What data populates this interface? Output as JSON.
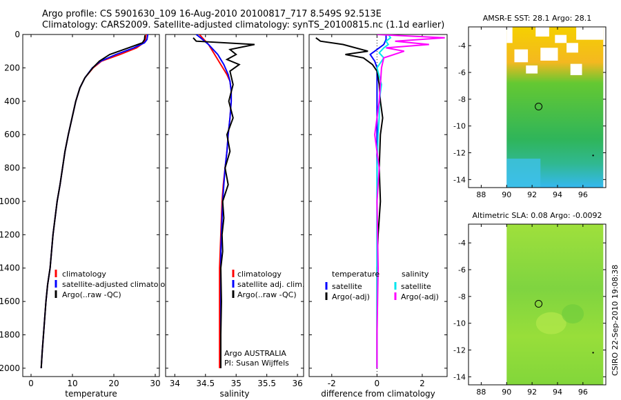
{
  "title_line1": "Argo profile: CS 5901630_109 16-Aug-2010 20100817_717 8.549S 92.513E",
  "title_line2": "Climatology: CARS2009. Satellite-adjusted climatology: synTS_20100815.nc (1.1d earlier)",
  "side_label": "CSIRO 22-Sep-2010 19:08:38",
  "colors": {
    "climatology": "#ff0000",
    "satellite": "#0000ff",
    "argo": "#000000",
    "sal_satellite": "#00e5ee",
    "sal_argo": "#ff00ff"
  },
  "chart_data": [
    {
      "type": "line",
      "xlabel": "temperature",
      "ylabel": "",
      "xlim": [
        -2,
        31
      ],
      "ylim": [
        2050,
        0
      ],
      "xticks": [
        0,
        10,
        20,
        30
      ],
      "yticks": [
        0,
        200,
        400,
        600,
        800,
        1000,
        1200,
        1400,
        1600,
        1800,
        2000
      ],
      "legend": [
        "climatology",
        "satellite-adjusted climatology",
        "Argo(..raw -QC)"
      ],
      "series": [
        {
          "name": "climatology",
          "color": "#ff0000",
          "x": [
            27.8,
            27.6,
            27.2,
            25.5,
            21.5,
            17.0,
            15.0,
            13.0,
            11.8,
            10.8,
            9.9,
            9.0,
            8.2,
            7.6,
            7.0,
            6.3,
            5.3,
            4.6,
            4.0,
            3.6,
            3.3,
            3.0,
            2.7,
            2.45
          ],
          "y": [
            0,
            30,
            50,
            80,
            120,
            160,
            200,
            260,
            320,
            400,
            500,
            600,
            700,
            800,
            900,
            1000,
            1200,
            1400,
            1500,
            1600,
            1700,
            1800,
            1900,
            2000
          ]
        },
        {
          "name": "satellite-adjusted climatology",
          "color": "#0000ff",
          "x": [
            28.2,
            28.0,
            27.4,
            24.8,
            20.5,
            16.8,
            14.8,
            13.0,
            11.8,
            10.8,
            9.9,
            9.0,
            8.2,
            7.6,
            7.0,
            6.3,
            5.3,
            4.6,
            4.0,
            3.6,
            3.3,
            3.0,
            2.7,
            2.45
          ],
          "y": [
            0,
            30,
            50,
            80,
            120,
            160,
            200,
            260,
            320,
            400,
            500,
            600,
            700,
            800,
            900,
            1000,
            1200,
            1400,
            1500,
            1600,
            1700,
            1800,
            1900,
            2000
          ]
        },
        {
          "name": "Argo(..raw -QC)",
          "color": "#000000",
          "x": [
            27.5,
            27.4,
            26.9,
            23.5,
            19.0,
            16.5,
            14.9,
            13.0,
            11.8,
            10.8,
            9.9,
            9.0,
            8.2,
            7.6,
            7.0,
            6.3,
            5.3,
            4.6,
            4.0,
            3.6,
            3.3,
            3.0,
            2.7,
            2.45
          ],
          "y": [
            5,
            30,
            50,
            80,
            120,
            160,
            200,
            260,
            320,
            400,
            500,
            600,
            700,
            800,
            900,
            1000,
            1200,
            1400,
            1500,
            1600,
            1700,
            1800,
            1900,
            2000
          ]
        }
      ]
    },
    {
      "type": "line",
      "xlabel": "salinity",
      "xlim": [
        33.85,
        36.1
      ],
      "ylim": [
        2050,
        0
      ],
      "xticks": [
        34,
        34.5,
        35,
        35.5,
        36
      ],
      "legend": [
        "climatology",
        "satellite adj. clim.",
        "Argo(..raw -QC)"
      ],
      "annotation": [
        "Argo AUSTRALIA",
        "PI: Susan Wijffels"
      ],
      "series": [
        {
          "name": "climatology",
          "color": "#ff0000",
          "x": [
            34.4,
            34.45,
            34.55,
            34.65,
            34.75,
            34.85,
            34.9,
            34.92,
            34.92,
            34.9,
            34.87,
            34.85,
            34.82,
            34.79,
            34.77,
            34.76,
            34.75,
            34.74,
            34.73,
            34.73,
            34.73,
            34.73,
            34.73,
            34.73,
            34.73
          ],
          "y": [
            0,
            20,
            60,
            120,
            180,
            240,
            280,
            340,
            400,
            500,
            600,
            700,
            800,
            900,
            1000,
            1100,
            1200,
            1300,
            1400,
            1500,
            1600,
            1700,
            1800,
            1900,
            2000
          ]
        },
        {
          "name": "satellite adj. clim.",
          "color": "#0000ff",
          "x": [
            34.35,
            34.42,
            34.55,
            34.7,
            34.8,
            34.87,
            34.9,
            34.92,
            34.92,
            34.9,
            34.87,
            34.85,
            34.82,
            34.8,
            34.78,
            34.77,
            34.76,
            34.75,
            34.75,
            34.75,
            34.75,
            34.75,
            34.75,
            34.75,
            34.75
          ],
          "y": [
            0,
            20,
            60,
            120,
            180,
            240,
            280,
            340,
            400,
            500,
            600,
            700,
            800,
            900,
            1000,
            1100,
            1200,
            1300,
            1400,
            1500,
            1600,
            1700,
            1800,
            1900,
            2000
          ]
        },
        {
          "name": "Argo(..raw -QC)",
          "color": "#000000",
          "x": [
            34.3,
            34.35,
            35.3,
            34.9,
            35.0,
            34.85,
            35.05,
            34.9,
            34.95,
            34.88,
            34.95,
            34.85,
            34.9,
            34.82,
            34.87,
            34.78,
            34.8,
            34.77,
            34.78,
            34.75,
            34.76,
            34.75,
            34.75
          ],
          "y": [
            20,
            40,
            60,
            90,
            120,
            150,
            180,
            220,
            300,
            400,
            500,
            600,
            700,
            800,
            900,
            1000,
            1100,
            1200,
            1300,
            1400,
            1600,
            1800,
            2000
          ]
        }
      ]
    },
    {
      "type": "line",
      "xlabel": "difference from climatology",
      "xlim": [
        -3.0,
        3.1
      ],
      "ylim": [
        2050,
        0
      ],
      "xticks": [
        -2,
        0,
        2
      ],
      "legend_header": [
        "temperature",
        "salinity"
      ],
      "legend": [
        "satellite",
        "Argo(-adj)",
        "satellite",
        "Argo(-adj)"
      ],
      "series": [
        {
          "name": "temperature satellite",
          "color": "#0000ff",
          "x": [
            0.4,
            0.4,
            0.3,
            0.1,
            -0.3,
            -0.1,
            0.0,
            0.0,
            0.0,
            0.0,
            0.0,
            0.0,
            0.0
          ],
          "y": [
            0,
            30,
            60,
            80,
            120,
            160,
            200,
            300,
            500,
            800,
            1200,
            1600,
            2000
          ]
        },
        {
          "name": "temperature Argo(-adj)",
          "color": "#000000",
          "x": [
            -2.7,
            -2.5,
            -1.5,
            -0.4,
            -1.4,
            -0.6,
            -0.2,
            0.0,
            0.1,
            0.15,
            0.25,
            0.15,
            0.1,
            0.15,
            0.05,
            0.0,
            0.0,
            0.0
          ],
          "y": [
            20,
            40,
            60,
            100,
            120,
            140,
            180,
            220,
            300,
            400,
            500,
            600,
            800,
            1000,
            1200,
            1400,
            1600,
            2000
          ]
        },
        {
          "name": "salinity satellite",
          "color": "#00e5ee",
          "x": [
            0.5,
            0.6,
            0.4,
            0.5,
            0.3,
            0.1,
            0.3,
            0.0,
            0.2,
            0.1,
            0.1,
            0.05,
            0.0,
            0.0,
            0.0,
            0.0
          ],
          "y": [
            0,
            20,
            40,
            60,
            80,
            110,
            140,
            200,
            300,
            400,
            500,
            600,
            800,
            1000,
            1500,
            2000
          ]
        },
        {
          "name": "salinity Argo(-adj)",
          "color": "#ff00ff",
          "x": [
            0.0,
            3.0,
            0.8,
            2.3,
            0.4,
            1.2,
            0.3,
            0.2,
            0.15,
            0.1,
            -0.1,
            0.1,
            0.0,
            0.05,
            0.0,
            0.0
          ],
          "y": [
            0,
            20,
            40,
            60,
            80,
            100,
            140,
            200,
            300,
            400,
            600,
            800,
            1000,
            1400,
            1800,
            2000
          ]
        }
      ]
    },
    {
      "type": "heatmap",
      "title": "AMSR-E SST: 28.1 Argo: 28.1",
      "xlim": [
        87,
        97.8
      ],
      "ylim": [
        -14.6,
        -2.6
      ],
      "xticks": [
        88,
        90,
        92,
        94,
        96
      ],
      "yticks": [
        -4,
        -6,
        -8,
        -10,
        -12,
        -14
      ],
      "data_extent": {
        "lon": [
          90,
          97.6
        ],
        "lat": [
          -14.6,
          -2.6
        ]
      },
      "marker": {
        "lon": 92.513,
        "lat": -8.549
      }
    },
    {
      "type": "heatmap",
      "title": "Altimetric SLA: 0.08 Argo: -0.0092",
      "xlim": [
        87,
        97.8
      ],
      "ylim": [
        -14.6,
        -2.6
      ],
      "xticks": [
        88,
        90,
        92,
        94,
        96
      ],
      "yticks": [
        -4,
        -6,
        -8,
        -10,
        -12,
        -14
      ],
      "data_extent": {
        "lon": [
          90,
          97.6
        ],
        "lat": [
          -14.6,
          -2.6
        ]
      },
      "marker": {
        "lon": 92.513,
        "lat": -8.549
      }
    }
  ]
}
